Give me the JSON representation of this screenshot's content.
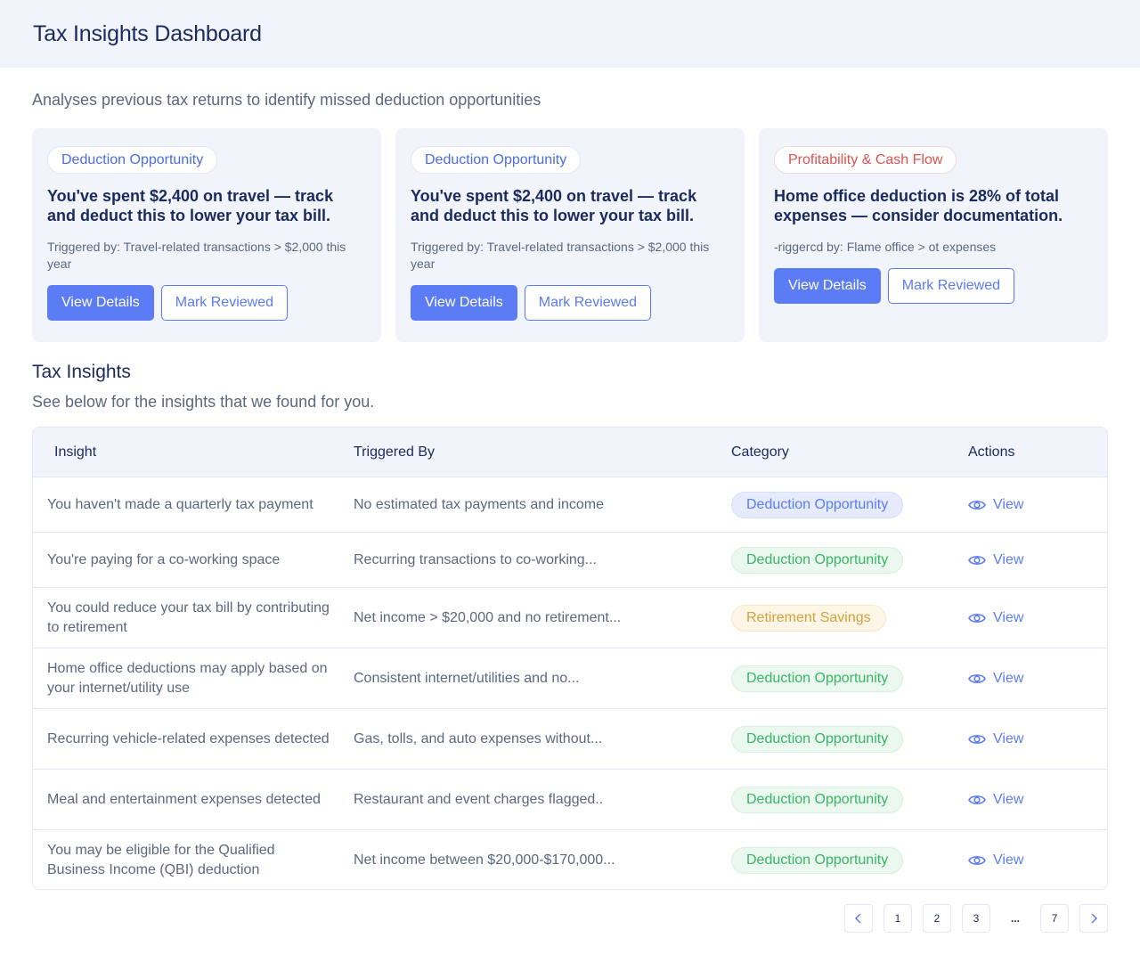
{
  "header": {
    "title": "Tax Insights Dashboard"
  },
  "subtitle": "Analyses previous tax returns to identify missed deduction opportunities",
  "cards": [
    {
      "category": "Deduction Opportunity",
      "title": "You've spent $2,400 on travel — track and deduct this to lower your tax bill.",
      "trigger": "Triggered by: Travel-related transactions > $2,000 this year",
      "primary_label": "View Details",
      "secondary_label": "Mark Reviewed"
    },
    {
      "category": "Deduction Opportunity",
      "title": "You've spent $2,400 on travel — track and deduct this to lower your tax bill.",
      "trigger": "Triggered by: Travel-related transactions > $2,000 this year",
      "primary_label": "View Details",
      "secondary_label": "Mark Reviewed"
    },
    {
      "category": "Profitability & Cash Flow",
      "title": "Home office deduction is 28% of total expenses — consider documentation.",
      "trigger": "-riggercd by: Flame office > ot expenses",
      "primary_label": "View Details",
      "secondary_label": "Mark Reviewed"
    }
  ],
  "insights": {
    "title": "Tax Insights",
    "subtitle": "See below for the insights that we found for you.",
    "columns": [
      "Insight",
      "Triggered By",
      "Category",
      "Actions"
    ],
    "rows": [
      {
        "insight": "You haven't made a quarterly tax payment",
        "trigger": "No estimated tax payments and income",
        "category": "Deduction Opportunity",
        "action": "View"
      },
      {
        "insight": "You're paying for a co-working space",
        "trigger": "Recurring transactions to co-working...",
        "category": "Deduction Opportunity",
        "action": "View"
      },
      {
        "insight": "You could reduce your tax bill by contributing to retirement",
        "trigger": "Net income > $20,000 and no retirement...",
        "category": "Retirement Savings",
        "action": "View"
      },
      {
        "insight": "Home office deductions may apply based on your internet/utility use",
        "trigger": "Consistent internet/utilities and no...",
        "category": "Deduction Opportunity",
        "action": "View"
      },
      {
        "insight": "Recurring vehicle-related expenses detected",
        "trigger": "Gas, tolls, and auto expenses without...",
        "category": "Deduction Opportunity",
        "action": "View"
      },
      {
        "insight": "Meal and entertainment expenses detected",
        "trigger": "Restaurant and event charges flagged..",
        "category": "Deduction Opportunity",
        "action": "View"
      },
      {
        "insight": "You may be eligible for the Qualified Business Income (QBI) deduction",
        "trigger": "Net income between $20,000-$170,000...",
        "category": "Deduction Opportunity",
        "action": "View"
      }
    ]
  },
  "pagination": {
    "pages": [
      "1",
      "2",
      "3",
      "...",
      "7"
    ],
    "prev_icon": "chevron-left-icon",
    "next_icon": "chevron-right-icon"
  },
  "colors": {
    "accent": "#5b7cf4",
    "green": "#3ab465",
    "amber": "#d6a23b",
    "red": "#d9534f"
  }
}
